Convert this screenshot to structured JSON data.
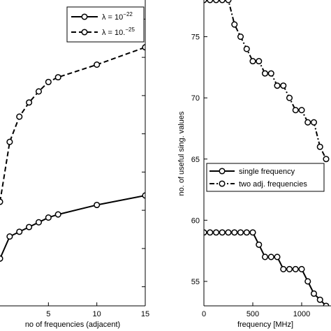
{
  "chart_data": [
    {
      "type": "line",
      "xlabel": "no of frequencies (adjacent)",
      "ylabel": "",
      "xlim": [
        0,
        15
      ],
      "ylim": [
        0.5,
        10.2
      ],
      "x_ticks": [
        5,
        10,
        15
      ],
      "y_ticks": [],
      "grid": false,
      "legend_position": "top-right",
      "series": [
        {
          "name": "λ = 10^−22",
          "legend_base": "λ = 10",
          "legend_exp": "−22",
          "style": "solid",
          "x": [
            0,
            1,
            2,
            3,
            4,
            5,
            6,
            10,
            15
          ],
          "y": [
            2.0,
            2.7,
            2.85,
            3.0,
            3.15,
            3.3,
            3.4,
            3.7,
            4.0
          ]
        },
        {
          "name": "λ = 10.^−25",
          "legend_base": "λ = 10.",
          "legend_exp": "−25",
          "style": "dashed",
          "x": [
            0,
            1,
            2,
            3,
            4,
            5,
            6,
            10,
            15
          ],
          "y": [
            3.8,
            5.7,
            6.5,
            6.95,
            7.3,
            7.6,
            7.75,
            8.15,
            8.7
          ]
        }
      ]
    },
    {
      "type": "line",
      "xlabel": "frequency [MHz]",
      "ylabel": "no. of useful sing. values",
      "xlim": [
        0,
        1300
      ],
      "ylim": [
        53,
        78
      ],
      "x_ticks": [
        0,
        500,
        1000
      ],
      "y_ticks": [
        55,
        60,
        65,
        70,
        75
      ],
      "grid": false,
      "legend_position": "center-right",
      "series": [
        {
          "name": "single frequency",
          "style": "solid",
          "x": [
            0,
            62.5,
            125,
            187.5,
            250,
            312.5,
            375,
            437.5,
            500,
            562.5,
            625,
            687.5,
            750,
            812.5,
            875,
            937.5,
            1000,
            1062.5,
            1125,
            1187.5,
            1250
          ],
          "y": [
            59,
            59,
            59,
            59,
            59,
            59,
            59,
            59,
            59,
            58,
            57,
            57,
            57,
            56,
            56,
            56,
            56,
            55,
            54,
            53.5,
            53
          ]
        },
        {
          "name": "two adj. frequencies",
          "style": "dashdot",
          "x": [
            0,
            62.5,
            125,
            187.5,
            250,
            312.5,
            375,
            437.5,
            500,
            562.5,
            625,
            687.5,
            750,
            812.5,
            875,
            937.5,
            1000,
            1062.5,
            1125,
            1187.5,
            1250
          ],
          "y": [
            78,
            78,
            78,
            78,
            78,
            76,
            75,
            74,
            73,
            73,
            72,
            72,
            71,
            71,
            70,
            69,
            69,
            68,
            68,
            66,
            65
          ]
        }
      ]
    }
  ]
}
